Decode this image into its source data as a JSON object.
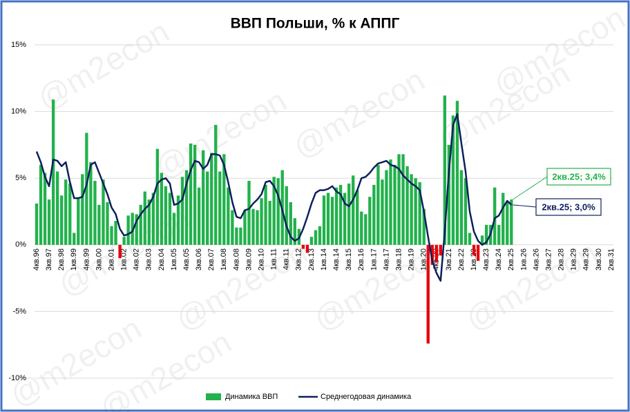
{
  "chart_data": {
    "type": "bar_line",
    "title": "ВВП Польши, % к АППГ",
    "watermark": "@m2econ",
    "categories": [
      "4кв.96",
      null,
      null,
      "3кв.97",
      null,
      null,
      "2кв.98",
      null,
      null,
      "1кв.99",
      null,
      null,
      "4кв.99",
      null,
      null,
      "3кв.00",
      null,
      null,
      "2кв.01",
      null,
      null,
      "1кв.02",
      null,
      null,
      "4кв.02",
      null,
      null,
      "3кв.03",
      null,
      null,
      "2кв.04",
      null,
      null,
      "1кв.05",
      null,
      null,
      "4кв.05",
      null,
      null,
      "3кв.06",
      null,
      null,
      "2кв.07",
      null,
      null,
      "1кв.08",
      null,
      null,
      "4кв.08",
      null,
      null,
      "3кв.09",
      null,
      null,
      "2кв.10",
      null,
      null,
      "1кв.11",
      null,
      null,
      "4кв.11",
      null,
      null,
      "3кв.12",
      null,
      null,
      "2кв.13",
      null,
      null,
      "1кв.14",
      null,
      null,
      "4кв.14",
      null,
      null,
      "3кв.15",
      null,
      null,
      "2кв.16",
      null,
      null,
      "1кв.17",
      null,
      null,
      "4кв.17",
      null,
      null,
      "3кв.18",
      null,
      null,
      "2кв.19",
      null,
      null,
      "1кв.20",
      null,
      null,
      "4кв.20",
      null,
      null,
      "3кв.21",
      null,
      null,
      "2кв.22",
      null,
      null,
      "1кв.23",
      null,
      null,
      "4кв.23",
      null,
      null,
      "3кв.24",
      null,
      null,
      "2кв.25",
      null,
      null,
      "1кв.26",
      null,
      null,
      "4кв.26",
      null,
      null,
      "3кв.27",
      null,
      null,
      "2кв.28",
      null,
      null,
      "1кв.29",
      null,
      null,
      "4кв.29",
      null,
      null,
      "3кв.30",
      null,
      null,
      "2кв.31"
    ],
    "series": [
      {
        "name": "Динамика ВВП",
        "kind": "bar",
        "color": "#22b14c",
        "negative_color": "#e8000b",
        "values": [
          3.1,
          6.0,
          5.4,
          3.4,
          10.9,
          5.5,
          3.7,
          4.9,
          4.6,
          0.9,
          3.5,
          5.3,
          8.4,
          6.2,
          4.8,
          3.0,
          4.9,
          3.2,
          1.4,
          1.8,
          -1.0,
          0.6,
          2.2,
          2.4,
          2.3,
          3.0,
          4.0,
          3.4,
          3.9,
          7.2,
          5.4,
          4.4,
          3.9,
          2.4,
          3.7,
          5.1,
          5.6,
          7.6,
          7.5,
          4.3,
          7.1,
          5.5,
          6.9,
          9.0,
          5.5,
          6.8,
          4.3,
          2.6,
          1.3,
          1.3,
          2.6,
          4.8,
          2.7,
          2.6,
          3.5,
          4.5,
          3.3,
          5.1,
          5.0,
          5.6,
          4.4,
          3.2,
          2.0,
          1.2,
          -0.3,
          -0.6,
          0.6,
          1.1,
          1.4,
          3.7,
          3.9,
          3.6,
          4.3,
          4.5,
          3.9,
          4.6,
          5.2,
          4.1,
          2.5,
          2.3,
          3.6,
          4.5,
          6.0,
          4.9,
          5.6,
          6.4,
          6.0,
          6.8,
          6.8,
          5.9,
          5.3,
          5.0,
          4.7,
          2.7,
          -7.4,
          -1.5,
          -1.3,
          -0.8,
          11.2,
          7.5,
          9.7,
          10.8,
          5.6,
          5.0,
          0.9,
          -0.8,
          -1.2,
          0.7,
          1.5,
          1.5,
          4.3,
          1.5,
          3.9,
          3.2,
          3.4,
          null,
          null,
          null,
          null,
          null,
          null,
          null,
          null,
          null,
          null,
          null,
          null,
          null,
          null,
          null,
          null,
          null,
          null,
          null,
          null,
          null,
          null,
          null,
          null
        ]
      },
      {
        "name": "Среднегодовая динамика",
        "kind": "line",
        "color": "#0d1f5c",
        "values": [
          7.0,
          6.2,
          5.1,
          4.4,
          6.4,
          6.3,
          5.9,
          6.2,
          4.7,
          3.5,
          3.5,
          3.6,
          4.5,
          6.0,
          6.2,
          5.4,
          4.6,
          3.8,
          2.8,
          2.3,
          1.2,
          0.7,
          0.8,
          1.0,
          1.8,
          2.3,
          2.7,
          3.0,
          3.6,
          4.6,
          4.9,
          5.0,
          4.6,
          3.0,
          3.1,
          3.4,
          4.6,
          5.6,
          6.3,
          6.2,
          5.7,
          6.0,
          6.8,
          6.8,
          6.7,
          6.0,
          4.7,
          3.2,
          2.1,
          2.0,
          2.6,
          2.7,
          3.1,
          3.4,
          3.8,
          4.7,
          4.8,
          4.4,
          3.7,
          2.6,
          1.4,
          0.6,
          0.3,
          0.5,
          1.2,
          2.1,
          3.1,
          3.9,
          4.1,
          4.1,
          4.2,
          4.4,
          4.0,
          3.8,
          3.1,
          2.9,
          3.4,
          4.1,
          5.0,
          5.1,
          5.4,
          5.8,
          6.1,
          6.2,
          6.3,
          6.0,
          5.9,
          5.7,
          5.2,
          4.9,
          4.6,
          4.4,
          4.1,
          2.5,
          0.6,
          -1.2,
          -2.1,
          -2.7,
          1.0,
          5.5,
          9.0,
          9.8,
          7.6,
          5.5,
          2.5,
          1.0,
          0.3,
          0.0,
          0.2,
          0.8,
          2.0,
          2.2,
          2.8,
          3.3,
          3.0,
          null,
          null,
          null,
          null,
          null,
          null,
          null,
          null,
          null,
          null,
          null,
          null,
          null,
          null,
          null,
          null,
          null,
          null,
          null,
          null,
          null,
          null,
          null,
          null
        ]
      }
    ],
    "ylim": [
      -10,
      15
    ],
    "yticks": [
      {
        "value": -10,
        "label": "-10%"
      },
      {
        "value": -5,
        "label": "-5%"
      },
      {
        "value": 0,
        "label": "0%"
      },
      {
        "value": 5,
        "label": "5%"
      },
      {
        "value": 10,
        "label": "10%"
      },
      {
        "value": 15,
        "label": "15%"
      }
    ],
    "grid": true,
    "legend": "bottom",
    "annotations": [
      {
        "text": "2кв.25; 3,4%",
        "series": 0,
        "color": "#22b14c"
      },
      {
        "text": "2кв.25; 3,0%",
        "series": 1,
        "color": "#0d1f5c"
      }
    ]
  }
}
